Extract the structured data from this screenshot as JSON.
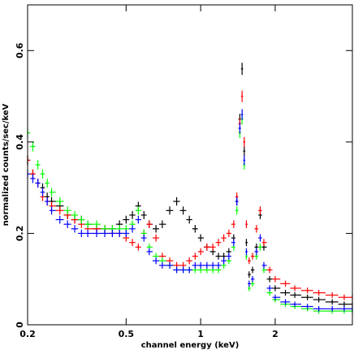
{
  "chart_data": {
    "type": "errorcross",
    "xlabel": "channel energy (keV)",
    "ylabel": "normalized counts/sec/keV",
    "xscale": "log",
    "xlim": [
      0.2,
      4.1
    ],
    "ylim": [
      0,
      0.7
    ],
    "xticks": [
      0.2,
      0.5,
      1,
      2
    ],
    "yticks": [
      0,
      0.2,
      0.4,
      0.6
    ],
    "x": [
      0.2,
      0.21,
      0.22,
      0.23,
      0.24,
      0.25,
      0.27,
      0.29,
      0.31,
      0.33,
      0.35,
      0.38,
      0.41,
      0.44,
      0.47,
      0.5,
      0.53,
      0.56,
      0.59,
      0.62,
      0.66,
      0.7,
      0.75,
      0.8,
      0.85,
      0.9,
      0.95,
      1,
      1.06,
      1.12,
      1.18,
      1.24,
      1.3,
      1.36,
      1.4,
      1.44,
      1.47,
      1.5,
      1.53,
      1.57,
      1.62,
      1.68,
      1.74,
      1.8,
      1.9,
      2,
      2.2,
      2.4,
      2.7,
      3,
      3.4,
      3.8,
      4.1
    ],
    "series": [
      {
        "color": "#000000",
        "values": [
          0.36,
          0.33,
          0.31,
          0.3,
          0.28,
          0.27,
          0.26,
          0.24,
          0.23,
          0.23,
          0.22,
          0.21,
          0.21,
          0.21,
          0.22,
          0.23,
          0.24,
          0.26,
          0.24,
          0.22,
          0.21,
          0.22,
          0.25,
          0.27,
          0.25,
          0.23,
          0.21,
          0.19,
          0.17,
          0.16,
          0.15,
          0.15,
          0.16,
          0.19,
          0.27,
          0.45,
          0.56,
          0.38,
          0.18,
          0.11,
          0.12,
          0.17,
          0.24,
          0.17,
          0.1,
          0.08,
          0.07,
          0.065,
          0.06,
          0.055,
          0.05,
          0.045,
          0.045
        ]
      },
      {
        "color": "#ff0000",
        "values": [
          0.36,
          0.33,
          0.31,
          0.28,
          0.27,
          0.26,
          0.25,
          0.24,
          0.23,
          0.22,
          0.21,
          0.21,
          0.21,
          0.2,
          0.2,
          0.19,
          0.18,
          0.17,
          0.2,
          0.22,
          0.19,
          0.15,
          0.14,
          0.13,
          0.13,
          0.14,
          0.15,
          0.16,
          0.17,
          0.17,
          0.18,
          0.19,
          0.2,
          0.22,
          0.28,
          0.44,
          0.5,
          0.4,
          0.22,
          0.14,
          0.15,
          0.21,
          0.25,
          0.18,
          0.12,
          0.1,
          0.09,
          0.08,
          0.075,
          0.07,
          0.065,
          0.06,
          0.06
        ]
      },
      {
        "color": "#00ff00",
        "values": [
          0.42,
          0.39,
          0.35,
          0.33,
          0.31,
          0.29,
          0.27,
          0.25,
          0.24,
          0.23,
          0.22,
          0.22,
          0.21,
          0.21,
          0.21,
          0.21,
          0.22,
          0.25,
          0.2,
          0.17,
          0.15,
          0.14,
          0.13,
          0.12,
          0.12,
          0.12,
          0.12,
          0.12,
          0.12,
          0.12,
          0.12,
          0.13,
          0.14,
          0.17,
          0.25,
          0.42,
          0.45,
          0.35,
          0.15,
          0.08,
          0.09,
          0.15,
          0.17,
          0.12,
          0.07,
          0.055,
          0.045,
          0.04,
          0.035,
          0.03,
          0.03,
          0.03,
          0.03
        ]
      },
      {
        "color": "#0000ff",
        "values": [
          0.33,
          0.32,
          0.31,
          0.29,
          0.27,
          0.25,
          0.23,
          0.22,
          0.21,
          0.2,
          0.2,
          0.2,
          0.2,
          0.2,
          0.2,
          0.2,
          0.21,
          0.23,
          0.19,
          0.16,
          0.14,
          0.13,
          0.13,
          0.12,
          0.12,
          0.12,
          0.13,
          0.13,
          0.13,
          0.13,
          0.13,
          0.14,
          0.15,
          0.18,
          0.27,
          0.43,
          0.46,
          0.36,
          0.16,
          0.09,
          0.1,
          0.16,
          0.19,
          0.13,
          0.08,
          0.06,
          0.05,
          0.045,
          0.04,
          0.035,
          0.035,
          0.035,
          0.035
        ]
      }
    ]
  }
}
